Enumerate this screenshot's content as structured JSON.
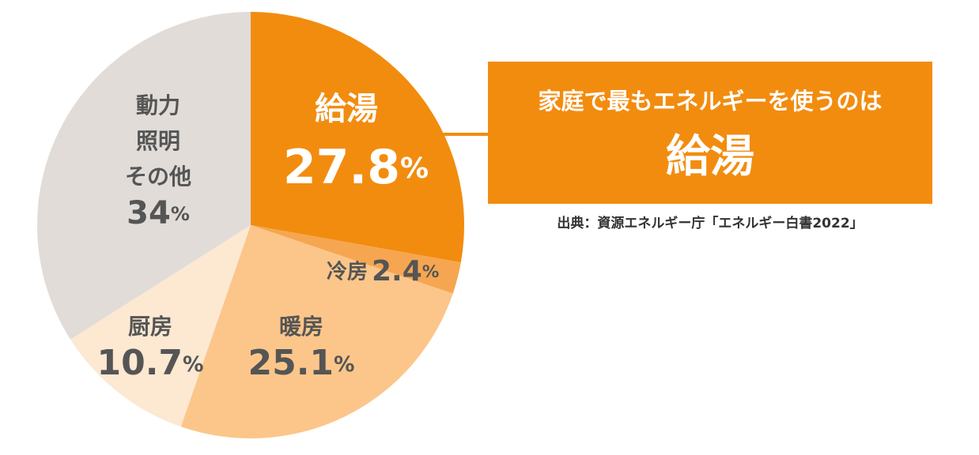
{
  "chart_data": {
    "type": "pie",
    "categories": [
      "給湯",
      "冷房",
      "暖房",
      "厨房",
      "動力\n照明\nその他"
    ],
    "values": [
      27.8,
      2.4,
      25.1,
      10.7,
      34
    ],
    "value_labels": [
      "27.8%",
      "2.4%",
      "25.1%",
      "10.7%",
      "34%"
    ],
    "colors": [
      "#f28c0f",
      "#f6a650",
      "#fcc68a",
      "#fde8d2",
      "#e1dcd8"
    ],
    "callout": {
      "text": "家庭で最もエネルギーを使うのは",
      "highlight": "給湯"
    },
    "source": "出典：資源エネルギー庁「エネルギー白書2022」"
  }
}
